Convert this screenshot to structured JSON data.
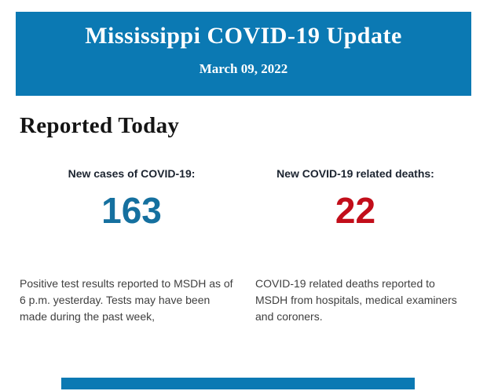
{
  "header": {
    "title": "Mississippi COVID-19 Update",
    "date": "March 09, 2022",
    "bg_color": "#0b79b3",
    "text_color": "#ffffff"
  },
  "main": {
    "heading": "Reported Today",
    "stats": [
      {
        "label": "New cases of COVID-19:",
        "value": "163",
        "value_color": "#15709f",
        "description": "Positive test results reported to MSDH as of 6 p.m. yesterday. Tests may have been made during the past week,"
      },
      {
        "label": "New COVID-19 related deaths:",
        "value": "22",
        "value_color": "#c20e1a",
        "description": "COVID-19 related deaths reported to MSDH from hospitals, medical examiners and coroners."
      }
    ]
  },
  "footer": {
    "bar_color": "#0b79b3"
  }
}
